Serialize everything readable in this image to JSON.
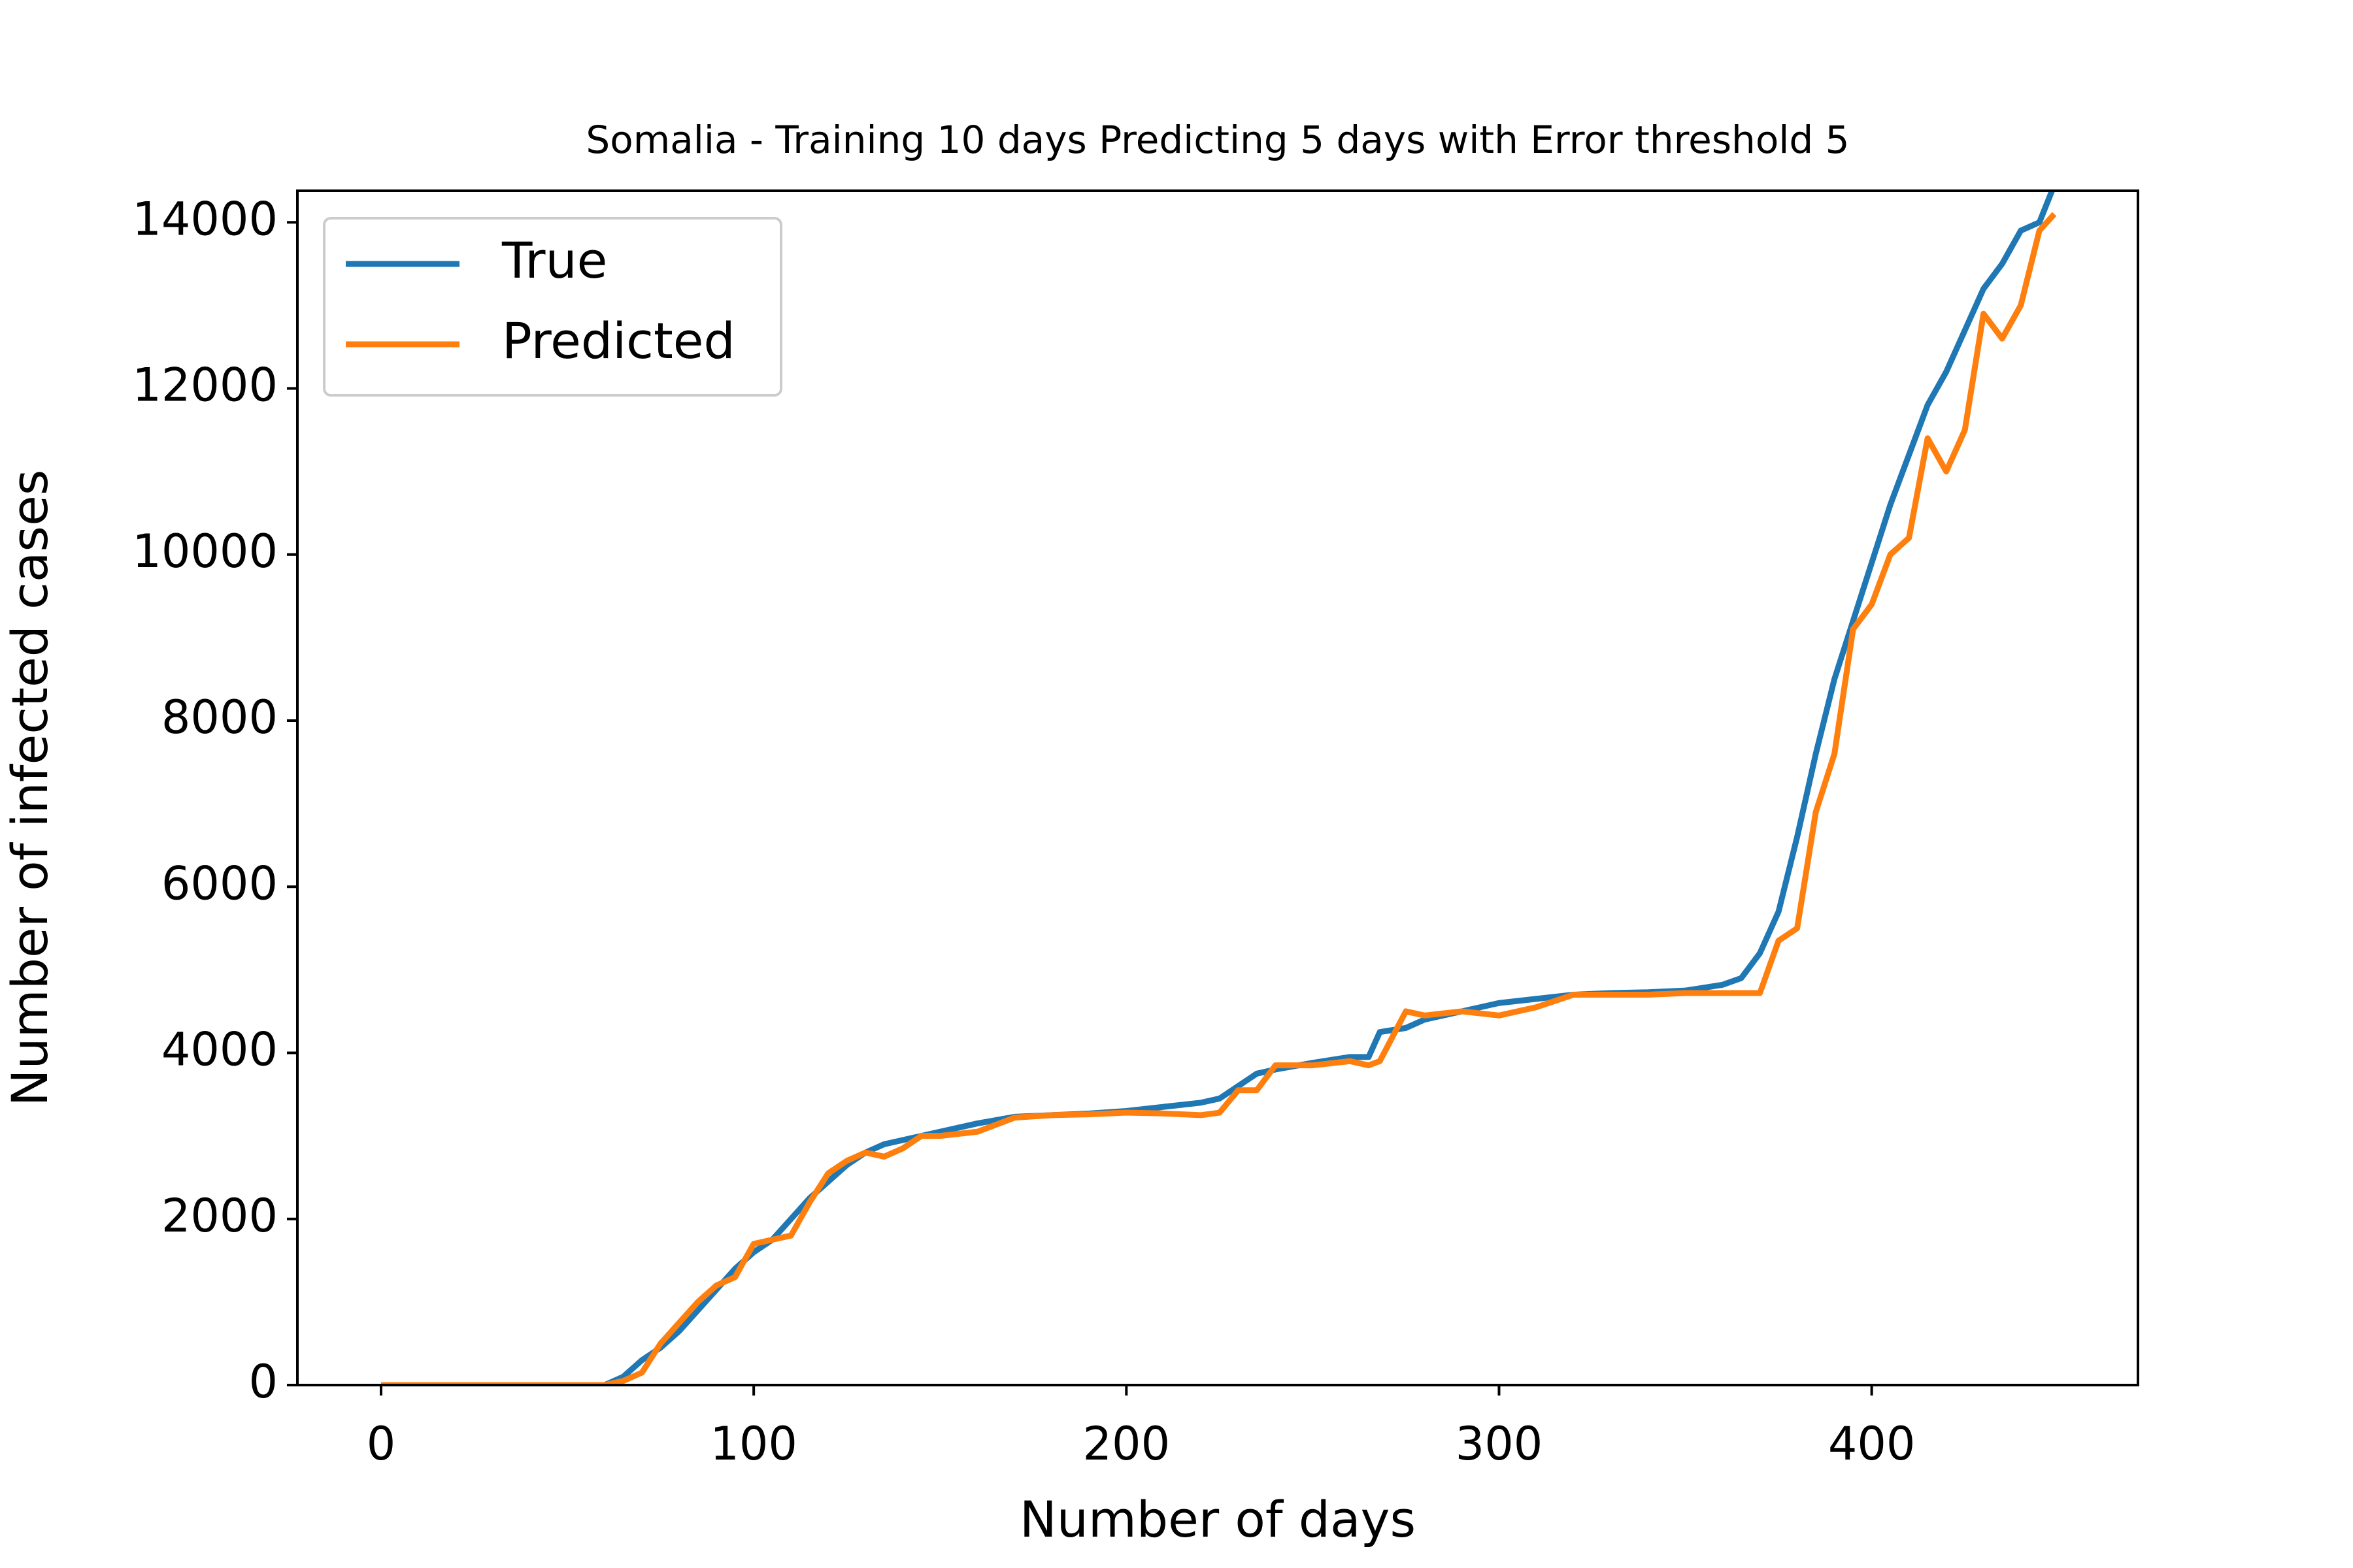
{
  "chart_data": {
    "type": "line",
    "title": "Somalia - Training 10 days Predicting 5 days with Error threshold 5",
    "x_label": "Number of days",
    "y_label": "Number of infected cases",
    "x": [
      0,
      60,
      65,
      70,
      75,
      80,
      85,
      90,
      95,
      100,
      105,
      110,
      115,
      120,
      125,
      130,
      135,
      140,
      145,
      150,
      160,
      170,
      180,
      190,
      200,
      210,
      220,
      225,
      230,
      235,
      240,
      250,
      260,
      265,
      268,
      275,
      280,
      290,
      300,
      310,
      320,
      330,
      340,
      350,
      360,
      365,
      370,
      375,
      380,
      385,
      390,
      395,
      400,
      405,
      410,
      415,
      420,
      425,
      430,
      435,
      440,
      445,
      449
    ],
    "series": [
      {
        "name": "True",
        "color": "#1f77b4",
        "values": [
          0,
          0,
          100,
          300,
          450,
          650,
          900,
          1150,
          1400,
          1600,
          1750,
          2000,
          2250,
          2450,
          2650,
          2800,
          2900,
          2950,
          3000,
          3050,
          3150,
          3230,
          3250,
          3270,
          3300,
          3350,
          3400,
          3450,
          3600,
          3750,
          3800,
          3880,
          3950,
          3950,
          4250,
          4300,
          4400,
          4500,
          4600,
          4650,
          4700,
          4720,
          4730,
          4750,
          4820,
          4900,
          5200,
          5700,
          6600,
          7600,
          8500,
          9200,
          9900,
          10600,
          11200,
          11800,
          12200,
          12700,
          13200,
          13500,
          13900,
          14000,
          14450
        ]
      },
      {
        "name": "Predicted",
        "color": "#ff7f0e",
        "values": [
          0,
          0,
          50,
          150,
          500,
          750,
          1000,
          1200,
          1300,
          1700,
          1750,
          1800,
          2200,
          2550,
          2700,
          2800,
          2750,
          2850,
          3000,
          3000,
          3050,
          3220,
          3250,
          3260,
          3280,
          3270,
          3250,
          3280,
          3550,
          3550,
          3850,
          3850,
          3900,
          3850,
          3900,
          4500,
          4450,
          4500,
          4450,
          4550,
          4700,
          4700,
          4700,
          4720,
          4720,
          4720,
          4720,
          5350,
          5500,
          6900,
          7600,
          9100,
          9400,
          10000,
          10200,
          11400,
          11000,
          11500,
          12900,
          12600,
          13000,
          13900,
          14100
        ]
      }
    ],
    "xlim": [
      -22.45,
      471.45
    ],
    "xticks": [
      0,
      100,
      200,
      300,
      400
    ],
    "ylim": [
      0,
      14380
    ],
    "yticks": [
      0,
      2000,
      4000,
      6000,
      8000,
      10000,
      12000,
      14000
    ],
    "legend": "upper left",
    "grid": false
  }
}
